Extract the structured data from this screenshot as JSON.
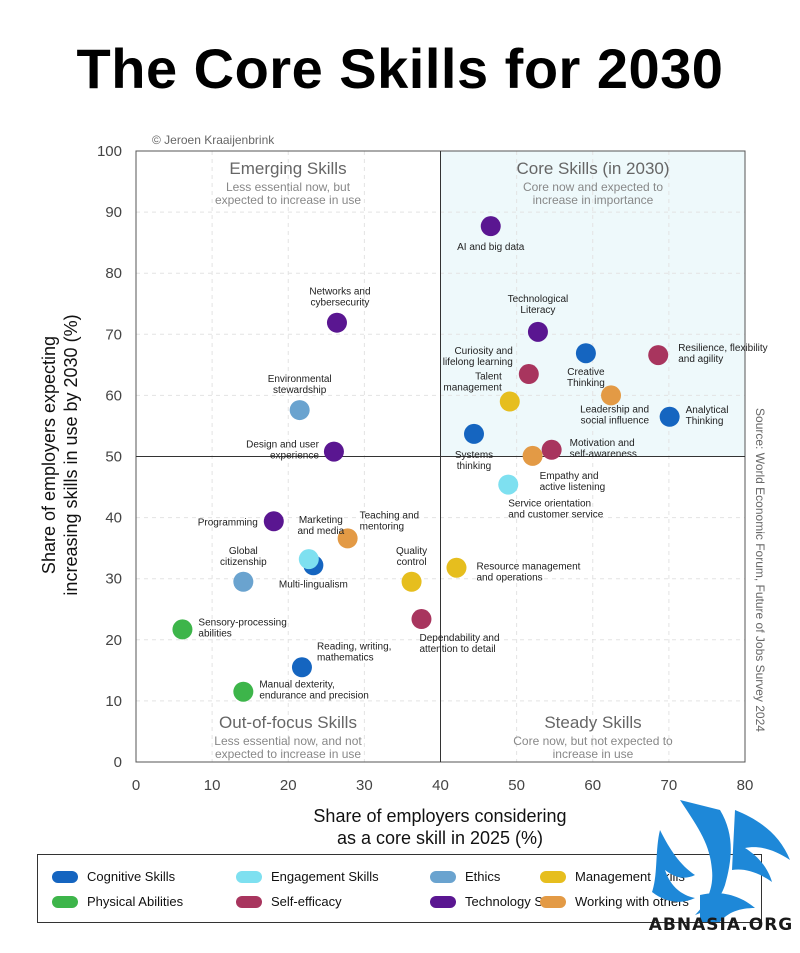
{
  "title": "The Core Skills for 2030",
  "credit": "© Jeroen Kraaijenbrink",
  "source": "Source: World Economic Forum, Future of Jobs Survey 2024",
  "watermark": "ABNASIA.ORG",
  "colors": {
    "cognitive": "#1565c0",
    "engagement": "#7ee0f0",
    "ethics": "#6aa3cf",
    "management": "#e6be1e",
    "physical": "#3db54a",
    "selfefficacy": "#a8355e",
    "technology": "#5a1691",
    "working": "#e39a45",
    "core_fill": "#eef9fb"
  },
  "quadrants": {
    "emerging": {
      "title": "Emerging Skills",
      "line1": "Less essential now, but",
      "line2": "expected to increase in use"
    },
    "core": {
      "title": "Core Skills (in 2030)",
      "line1": "Core now and expected to",
      "line2": "increase in importance"
    },
    "outfocus": {
      "title": "Out-of-focus Skills",
      "line1": "Less essential now, and not",
      "line2": "expected to increase in use"
    },
    "steady": {
      "title": "Steady Skills",
      "line1": "Core now, but not expected to",
      "line2": "increase in use"
    }
  },
  "legend": [
    {
      "key": "cognitive",
      "label": "Cognitive Skills"
    },
    {
      "key": "engagement",
      "label": "Engagement Skills"
    },
    {
      "key": "ethics",
      "label": "Ethics"
    },
    {
      "key": "management",
      "label": "Management Skills"
    },
    {
      "key": "physical",
      "label": "Physical Abilities"
    },
    {
      "key": "selfefficacy",
      "label": "Self-efficacy"
    },
    {
      "key": "technology",
      "label": "Technology Skills"
    },
    {
      "key": "working",
      "label": "Working with others"
    }
  ],
  "chart_data": {
    "type": "scatter",
    "title": "The Core Skills for 2030",
    "xlabel": [
      "Share of employers considering",
      "as a core skill in 2025 (%)"
    ],
    "ylabel": [
      "Share of employers expecting",
      "increasing skills in use by 2030 (%)"
    ],
    "xlim": [
      0,
      80
    ],
    "ylim": [
      0,
      100
    ],
    "xticks": [
      0,
      10,
      20,
      30,
      40,
      50,
      60,
      70,
      80
    ],
    "yticks": [
      0,
      10,
      20,
      30,
      40,
      50,
      60,
      70,
      80,
      90,
      100
    ],
    "dividers": {
      "x": 40,
      "y": 50
    },
    "points": [
      {
        "label": [
          "AI and big data"
        ],
        "x": 46.6,
        "y": 87.7,
        "cat": "technology"
      },
      {
        "label": [
          "Technological",
          "Literacy"
        ],
        "x": 52.8,
        "y": 70.4,
        "cat": "technology"
      },
      {
        "label": [
          "Networks and",
          "cybersecurity"
        ],
        "x": 26.4,
        "y": 71.9,
        "cat": "technology"
      },
      {
        "label": [
          "Design and user",
          "experience"
        ],
        "x": 26.0,
        "y": 50.8,
        "cat": "technology"
      },
      {
        "label": [
          "Programming"
        ],
        "x": 18.1,
        "y": 39.4,
        "cat": "technology"
      },
      {
        "label": [
          "Creative",
          "Thinking"
        ],
        "x": 59.1,
        "y": 66.9,
        "cat": "cognitive"
      },
      {
        "label": [
          "Analytical",
          "Thinking"
        ],
        "x": 70.1,
        "y": 56.5,
        "cat": "cognitive"
      },
      {
        "label": [
          "Systems",
          "thinking"
        ],
        "x": 44.4,
        "y": 53.7,
        "cat": "cognitive"
      },
      {
        "label": [
          "Multi-lingualism"
        ],
        "x": 23.3,
        "y": 32.2,
        "cat": "cognitive"
      },
      {
        "label": [
          "Reading, writing,",
          "mathematics"
        ],
        "x": 21.8,
        "y": 15.5,
        "cat": "cognitive"
      },
      {
        "label": [
          "Resilience, flexibility",
          "and agility"
        ],
        "x": 68.6,
        "y": 66.6,
        "cat": "selfefficacy"
      },
      {
        "label": [
          "Curiosity and",
          "lifelong learning"
        ],
        "x": 51.6,
        "y": 63.5,
        "cat": "selfefficacy"
      },
      {
        "label": [
          "Motivation and",
          "self-awareness"
        ],
        "x": 54.6,
        "y": 51.1,
        "cat": "selfefficacy"
      },
      {
        "label": [
          "Dependability and",
          "attention to detail"
        ],
        "x": 37.5,
        "y": 23.4,
        "cat": "selfefficacy"
      },
      {
        "label": [
          "Leadership and",
          "social influence"
        ],
        "x": 62.4,
        "y": 60.0,
        "cat": "working"
      },
      {
        "label": [
          "Empathy and",
          "active listening"
        ],
        "x": 52.1,
        "y": 50.1,
        "cat": "working"
      },
      {
        "label": [
          "Teaching and",
          "mentoring"
        ],
        "x": 27.8,
        "y": 36.6,
        "cat": "working"
      },
      {
        "label": [
          "Talent",
          "management"
        ],
        "x": 49.1,
        "y": 59.0,
        "cat": "management"
      },
      {
        "label": [
          "Resource management",
          "and operations"
        ],
        "x": 42.1,
        "y": 31.8,
        "cat": "management"
      },
      {
        "label": [
          "Quality",
          "control"
        ],
        "x": 36.2,
        "y": 29.5,
        "cat": "management"
      },
      {
        "label": [
          "Service orientation",
          "and customer service"
        ],
        "x": 48.9,
        "y": 45.4,
        "cat": "engagement"
      },
      {
        "label": [
          "Marketing",
          "and media"
        ],
        "x": 22.7,
        "y": 33.2,
        "cat": "engagement"
      },
      {
        "label": [
          "Environmental",
          "stewardship"
        ],
        "x": 21.5,
        "y": 57.6,
        "cat": "ethics"
      },
      {
        "label": [
          "Global",
          "citizenship"
        ],
        "x": 14.1,
        "y": 29.5,
        "cat": "ethics"
      },
      {
        "label": [
          "Sensory-processing",
          "abilities"
        ],
        "x": 6.1,
        "y": 21.7,
        "cat": "physical"
      },
      {
        "label": [
          "Manual dexterity,",
          "endurance and precision"
        ],
        "x": 14.1,
        "y": 11.5,
        "cat": "physical"
      }
    ]
  }
}
